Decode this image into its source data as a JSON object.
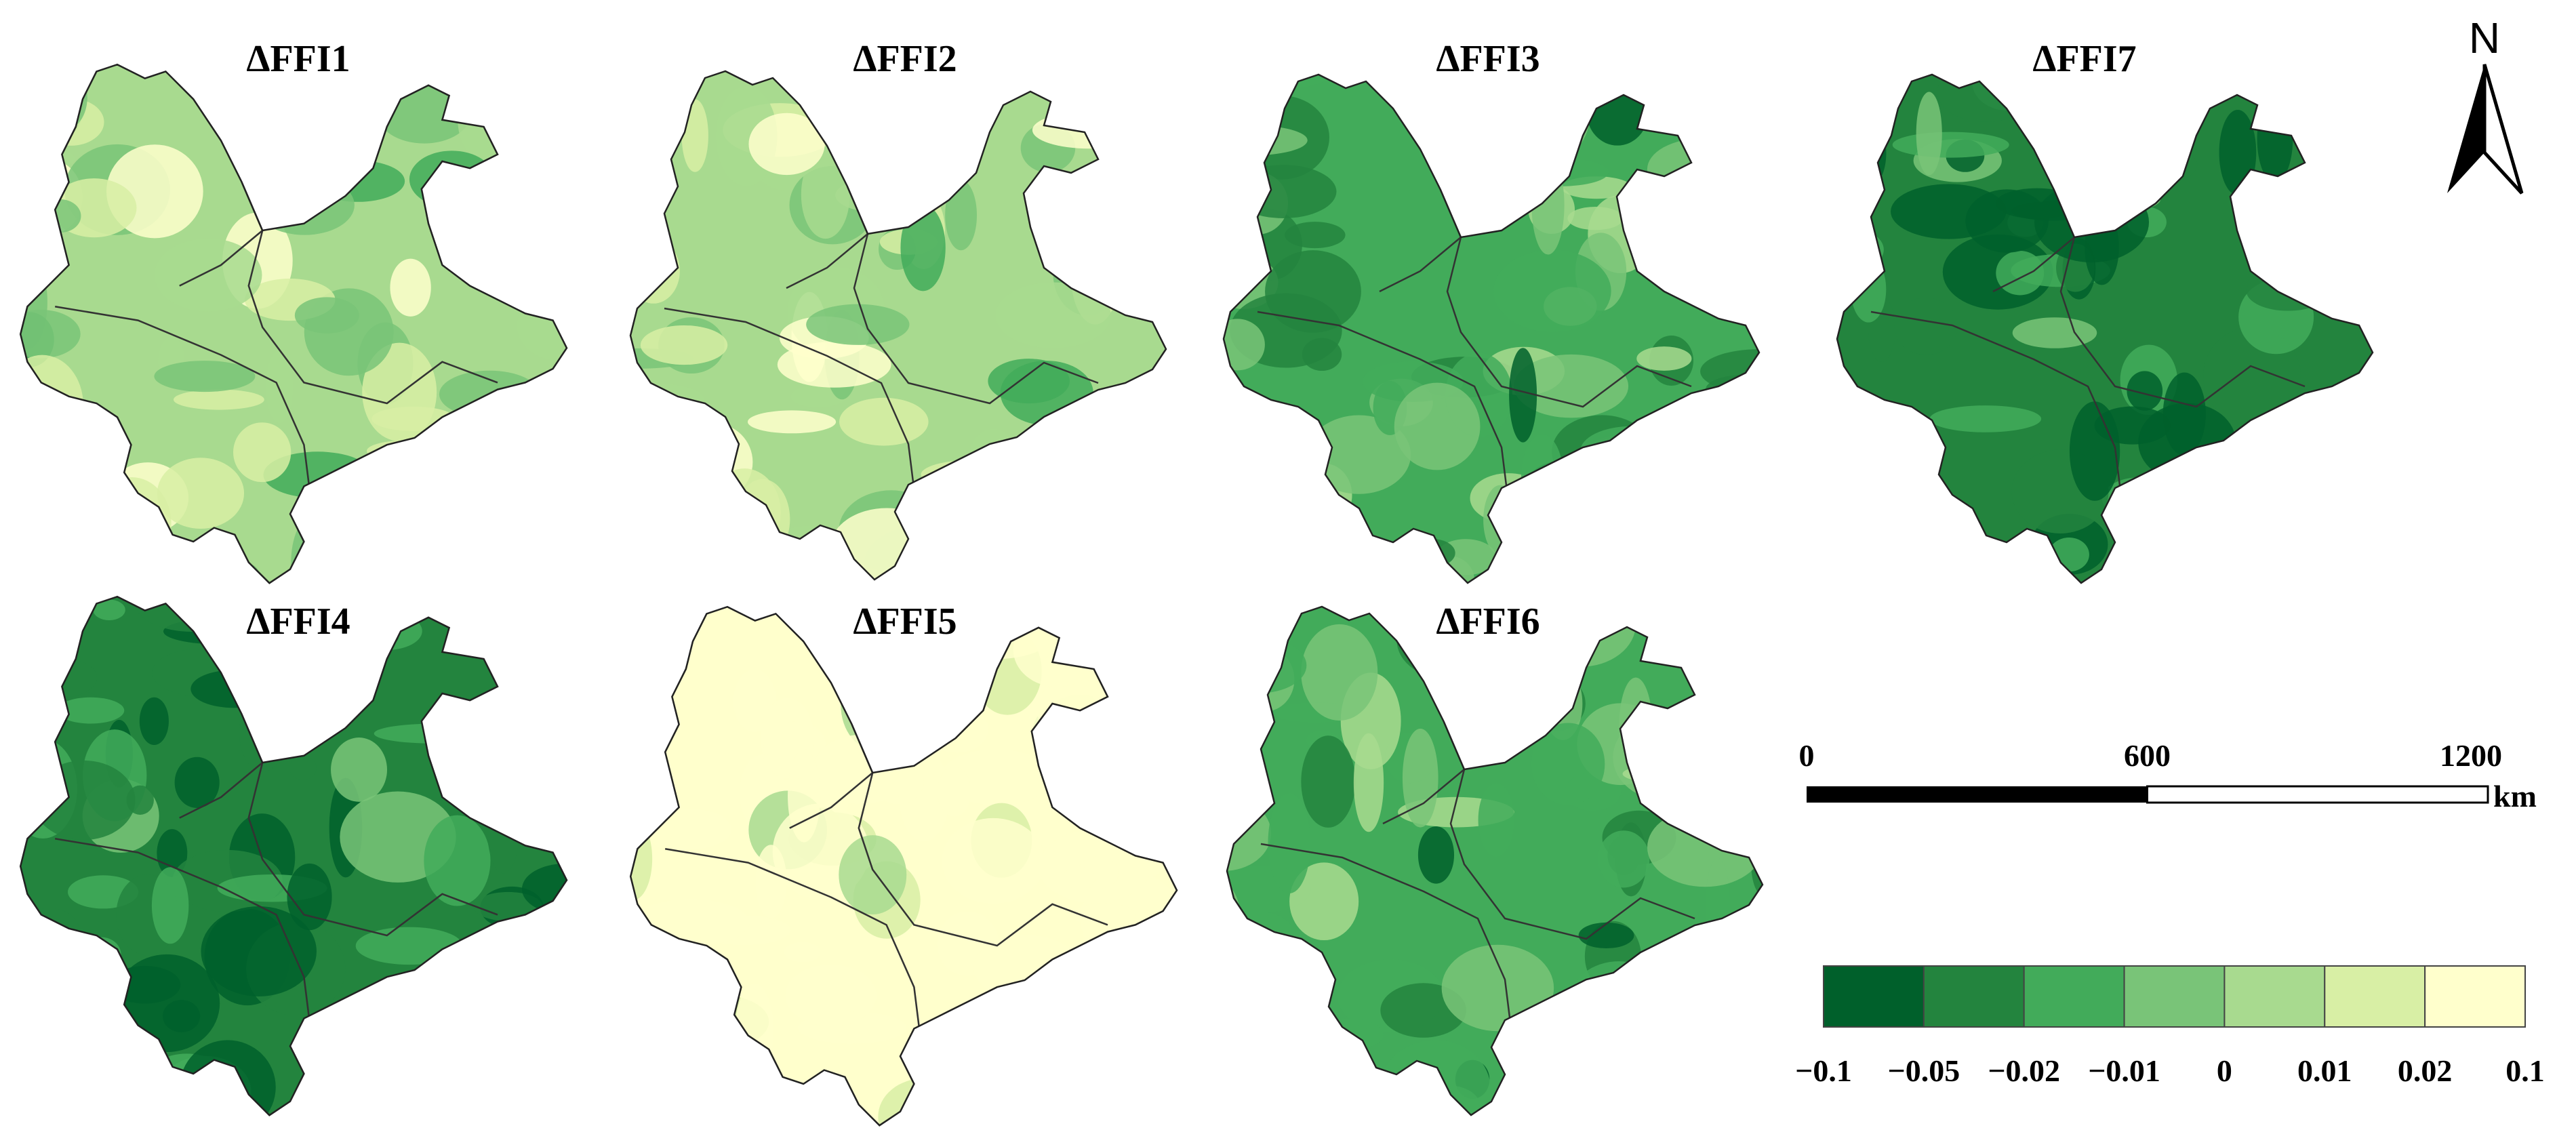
{
  "panels": [
    {
      "id": "ffi1",
      "title": "ΔFFI1",
      "base_level": 4
    },
    {
      "id": "ffi2",
      "title": "ΔFFI2",
      "base_level": 4
    },
    {
      "id": "ffi3",
      "title": "ΔFFI3",
      "base_level": 2
    },
    {
      "id": "ffi7",
      "title": "ΔFFI7",
      "base_level": 1
    },
    {
      "id": "ffi4",
      "title": "ΔFFI4",
      "base_level": 1
    },
    {
      "id": "ffi5",
      "title": "ΔFFI5",
      "base_level": 6
    },
    {
      "id": "ffi6",
      "title": "ΔFFI6",
      "base_level": 2
    }
  ],
  "north_arrow": {
    "label": "N",
    "icon": "north-arrow-icon"
  },
  "scale_bar": {
    "ticks": [
      "0",
      "600",
      "1200"
    ],
    "unit": "km"
  },
  "legend": {
    "colors": [
      "#00602b",
      "#23843e",
      "#42ab5a",
      "#79c478",
      "#a8da8f",
      "#d8efa5",
      "#ffffcc"
    ],
    "labels": [
      "−0.1",
      "−0.05",
      "−0.02",
      "−0.01",
      "0",
      "0.01",
      "0.02",
      "0.1"
    ]
  },
  "boundary_color": "#333333"
}
